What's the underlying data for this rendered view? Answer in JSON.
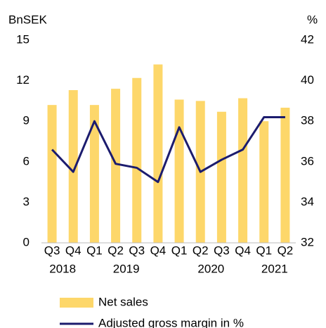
{
  "chart_data": {
    "type": "bar_line",
    "y_label": "BnSEK",
    "y2_label": "%",
    "categories": [
      "Q3",
      "Q4",
      "Q1",
      "Q2",
      "Q3",
      "Q4",
      "Q1",
      "Q2",
      "Q3",
      "Q4",
      "Q1",
      "Q2"
    ],
    "x_group_labels": [
      "2018",
      null,
      "2019",
      null,
      null,
      null,
      "2020",
      null,
      null,
      null,
      "2021",
      null
    ],
    "ylim": [
      0,
      15
    ],
    "yticks": [
      0,
      3,
      6,
      9,
      12,
      15
    ],
    "y2lim": [
      32,
      42
    ],
    "y2ticks": [
      32,
      34,
      36,
      38,
      40,
      42
    ],
    "series": [
      {
        "name": "Net sales",
        "type": "bar",
        "color": "#fdd76a",
        "values": [
          10.2,
          11.3,
          10.2,
          11.4,
          12.2,
          13.2,
          10.6,
          10.5,
          9.7,
          10.7,
          9.0,
          10.0
        ]
      },
      {
        "name": "Adjusted gross margin in %",
        "type": "line",
        "axis": "y2",
        "color": "#1c1c6e",
        "values": [
          36.6,
          35.5,
          38.0,
          35.9,
          35.7,
          35.0,
          37.7,
          35.5,
          36.1,
          36.6,
          38.2,
          38.2
        ]
      }
    ]
  }
}
